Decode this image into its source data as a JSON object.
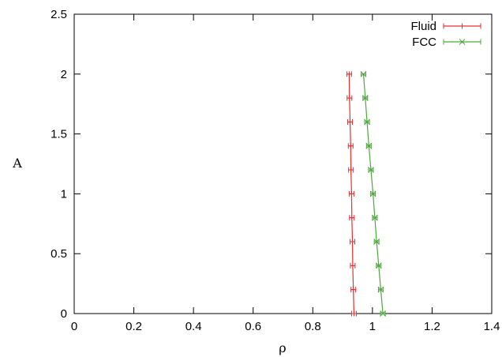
{
  "chart_data": {
    "type": "line",
    "xlabel": "ρ",
    "ylabel": "A",
    "xlim": [
      0,
      1.4
    ],
    "ylim": [
      0,
      2.5
    ],
    "x_ticks": [
      "0",
      "0.2",
      "0.4",
      "0.6",
      "0.8",
      "1",
      "1.2",
      "1.4"
    ],
    "y_ticks": [
      "0",
      "0.5",
      "1",
      "1.5",
      "2",
      "2.5"
    ],
    "grid": false,
    "legend_position": "top-right",
    "series": [
      {
        "name": "Fluid",
        "color": "#e8302e",
        "marker": "plus",
        "error_bars": "horizontal",
        "x": [
          0.938,
          0.936,
          0.934,
          0.933,
          0.931,
          0.93,
          0.928,
          0.927,
          0.925,
          0.923,
          0.922
        ],
        "y": [
          0,
          0.2,
          0.4,
          0.6,
          0.8,
          1.0,
          1.2,
          1.4,
          1.6,
          1.8,
          2.0
        ]
      },
      {
        "name": "FCC",
        "color": "#4fa83d",
        "marker": "cross",
        "error_bars": "horizontal",
        "x": [
          1.035,
          1.028,
          1.021,
          1.014,
          1.008,
          1.002,
          0.995,
          0.988,
          0.982,
          0.976,
          0.97
        ],
        "y": [
          0,
          0.2,
          0.4,
          0.6,
          0.8,
          1.0,
          1.2,
          1.4,
          1.6,
          1.8,
          2.0
        ]
      }
    ]
  }
}
